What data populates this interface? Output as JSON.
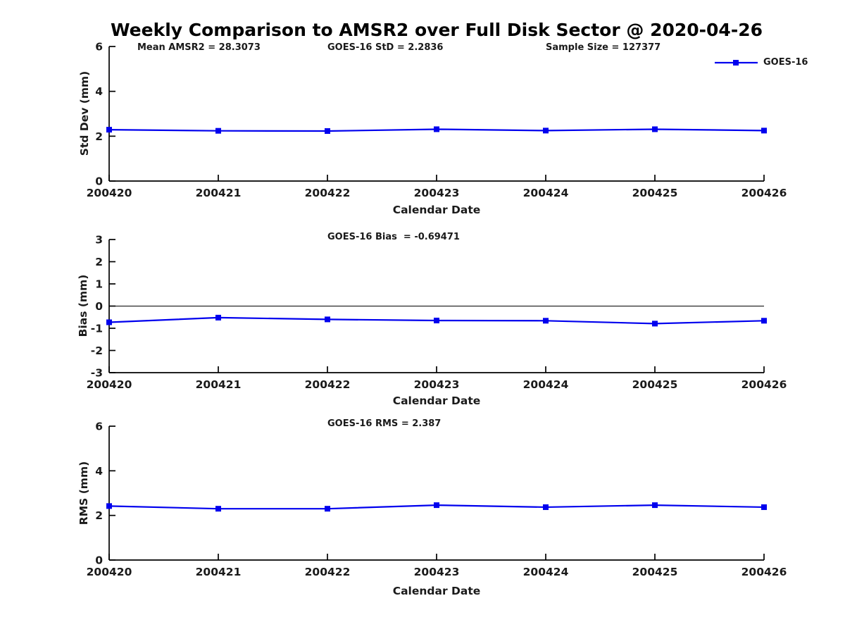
{
  "title": "Weekly Comparison to AMSR2 over Full Disk Sector @ 2020-04-26",
  "legend": {
    "label": "GOES-16"
  },
  "colors": {
    "line": "#0000EE",
    "axis": "#000000",
    "text": "#1a1a1a"
  },
  "chart_data": [
    {
      "type": "line",
      "title": "",
      "categories": [
        "200420",
        "200421",
        "200422",
        "200423",
        "200424",
        "200425",
        "200426"
      ],
      "series": [
        {
          "name": "GOES-16",
          "values": [
            2.29,
            2.24,
            2.23,
            2.31,
            2.25,
            2.31,
            2.25
          ]
        }
      ],
      "ylabel": "Std Dev (mm)",
      "xlabel": "Calendar Date",
      "ylim": [
        0,
        6
      ],
      "yticks": [
        0,
        2,
        4,
        6
      ],
      "grid": false,
      "legend_position": "top-right",
      "annotations": [
        {
          "text": "Mean AMSR2 = 28.3073"
        },
        {
          "text": "GOES-16 StD = 2.2836"
        },
        {
          "text": "Sample Size = 127377"
        }
      ]
    },
    {
      "type": "line",
      "title": "",
      "categories": [
        "200420",
        "200421",
        "200422",
        "200423",
        "200424",
        "200425",
        "200426"
      ],
      "series": [
        {
          "name": "GOES-16",
          "values": [
            -0.73,
            -0.52,
            -0.6,
            -0.65,
            -0.66,
            -0.79,
            -0.66
          ]
        }
      ],
      "ylabel": "Bias (mm)",
      "xlabel": "Calendar Date",
      "ylim": [
        -3,
        3
      ],
      "yticks": [
        3,
        2,
        1,
        0,
        -1,
        -2,
        -3
      ],
      "zero_line": true,
      "grid": false,
      "annotations": [
        {
          "text": "GOES-16 Bias  = -0.69471"
        }
      ]
    },
    {
      "type": "line",
      "title": "",
      "categories": [
        "200420",
        "200421",
        "200422",
        "200423",
        "200424",
        "200425",
        "200426"
      ],
      "series": [
        {
          "name": "GOES-16",
          "values": [
            2.42,
            2.3,
            2.3,
            2.46,
            2.37,
            2.46,
            2.37
          ]
        }
      ],
      "ylabel": "RMS (mm)",
      "xlabel": "Calendar Date",
      "ylim": [
        0,
        6
      ],
      "yticks": [
        0,
        2,
        4,
        6
      ],
      "grid": false,
      "annotations": [
        {
          "text": "GOES-16 RMS = 2.387"
        }
      ]
    }
  ]
}
